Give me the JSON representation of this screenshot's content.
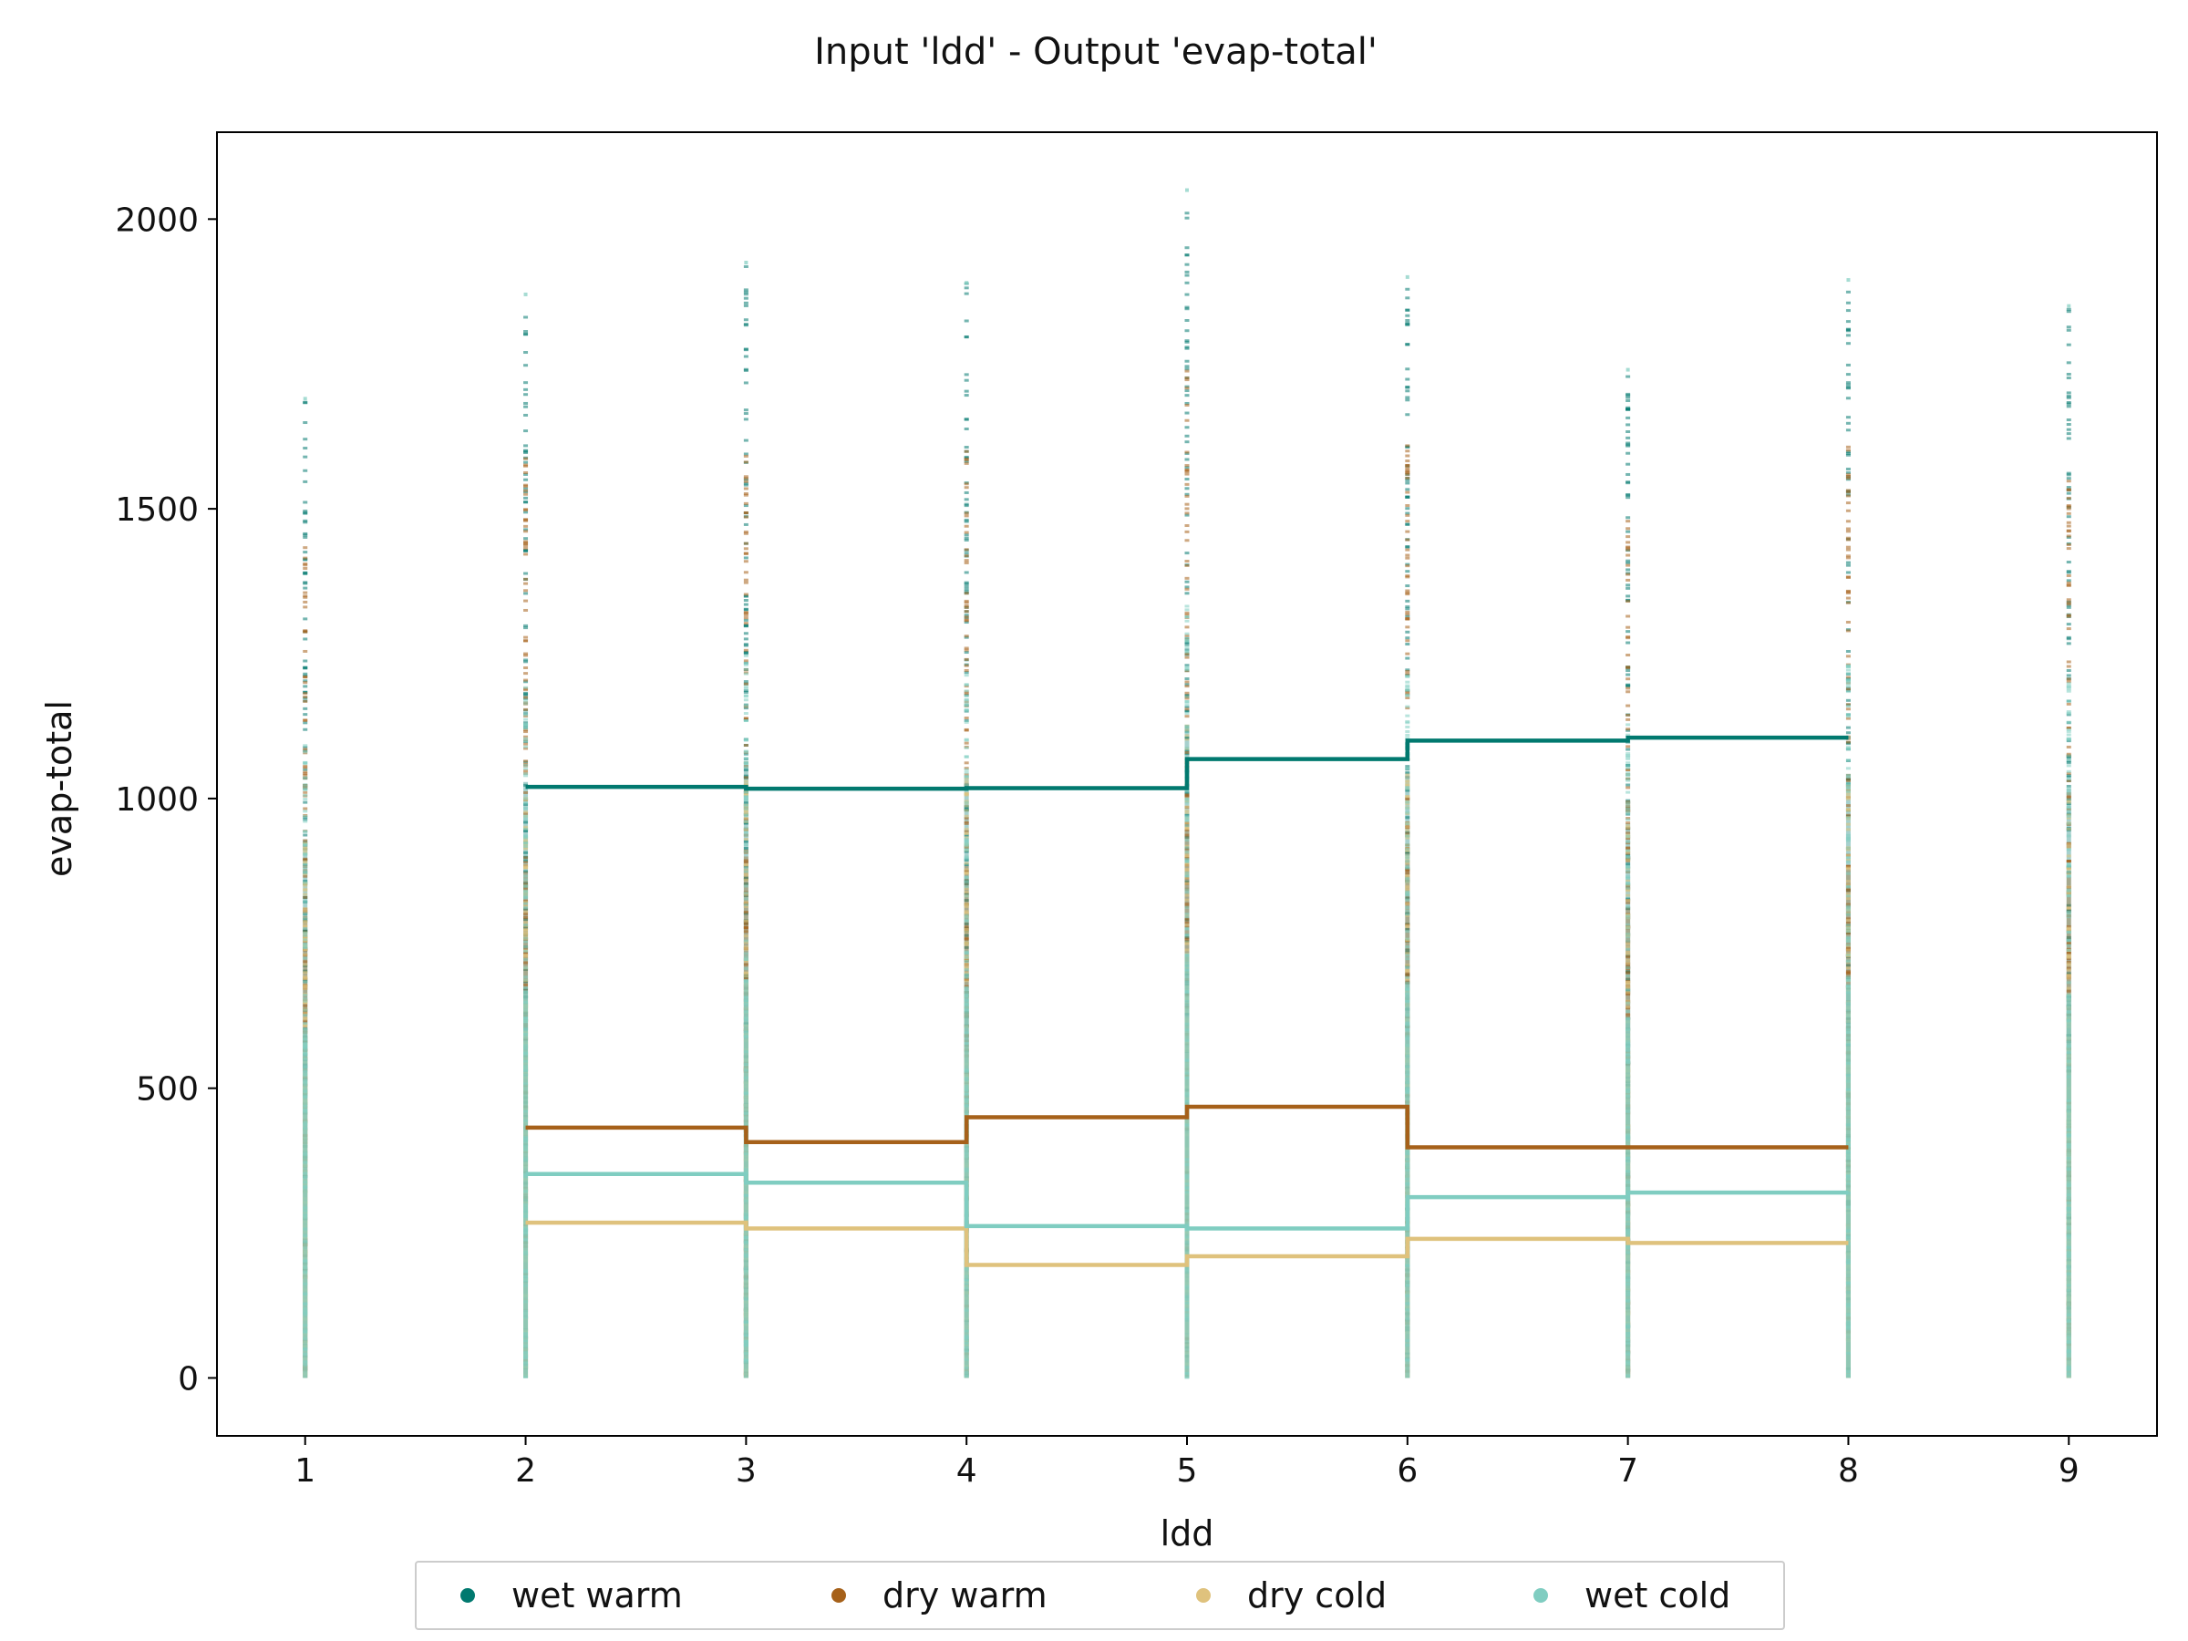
{
  "chart_data": {
    "type": "scatter",
    "title": "Input 'ldd' - Output 'evap-total'",
    "xlabel": "ldd",
    "ylabel": "evap-total",
    "xlim": [
      0.6,
      9.4
    ],
    "ylim": [
      -100,
      2150
    ],
    "xticks": [
      1,
      2,
      3,
      4,
      5,
      6,
      7,
      8,
      9
    ],
    "yticks": [
      0,
      500,
      1000,
      1500,
      2000
    ],
    "grid": false,
    "legend_position": "bottom-center",
    "scatter_columns": [
      {
        "x": 1,
        "max": 1690
      },
      {
        "x": 2,
        "max": 1870
      },
      {
        "x": 3,
        "max": 1925
      },
      {
        "x": 4,
        "max": 1890
      },
      {
        "x": 5,
        "max": 2050
      },
      {
        "x": 6,
        "max": 1900
      },
      {
        "x": 7,
        "max": 1740
      },
      {
        "x": 8,
        "max": 1895
      },
      {
        "x": 9,
        "max": 1850
      }
    ],
    "series": [
      {
        "name": "wet warm",
        "color": "#01796f",
        "steps": [
          [
            2,
            1020
          ],
          [
            3,
            1017
          ],
          [
            4,
            1018
          ],
          [
            5,
            1068
          ],
          [
            6,
            1100
          ],
          [
            7,
            1105
          ],
          [
            8,
            1105
          ]
        ]
      },
      {
        "name": "dry warm",
        "color": "#a6611a",
        "steps": [
          [
            2,
            432
          ],
          [
            3,
            407
          ],
          [
            4,
            450
          ],
          [
            5,
            468
          ],
          [
            6,
            398
          ],
          [
            7,
            398
          ],
          [
            8,
            398
          ]
        ]
      },
      {
        "name": "dry cold",
        "color": "#dfc27d",
        "steps": [
          [
            2,
            268
          ],
          [
            3,
            258
          ],
          [
            4,
            195
          ],
          [
            5,
            210
          ],
          [
            6,
            240
          ],
          [
            7,
            233
          ],
          [
            8,
            233
          ]
        ]
      },
      {
        "name": "wet cold",
        "color": "#80cdc1",
        "steps": [
          [
            2,
            352
          ],
          [
            3,
            337
          ],
          [
            4,
            262
          ],
          [
            5,
            258
          ],
          [
            6,
            312
          ],
          [
            7,
            320
          ],
          [
            8,
            320
          ]
        ]
      }
    ]
  },
  "legend": {
    "items": [
      {
        "label": "wet warm",
        "color": "#01796f"
      },
      {
        "label": "dry warm",
        "color": "#a6611a"
      },
      {
        "label": "dry cold",
        "color": "#dfc27d"
      },
      {
        "label": "wet cold",
        "color": "#80cdc1"
      }
    ]
  }
}
